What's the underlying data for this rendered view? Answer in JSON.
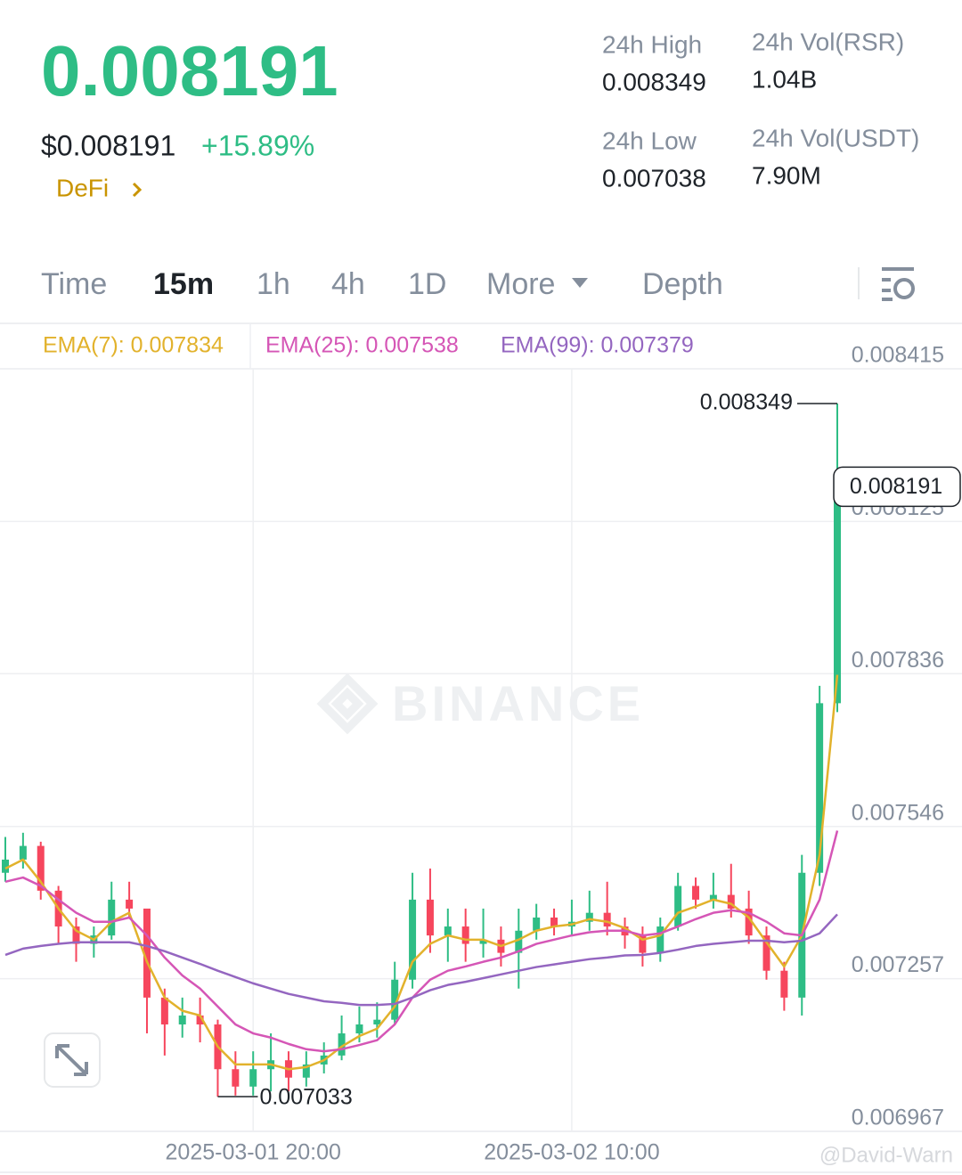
{
  "header": {
    "price": "0.008191",
    "usd_price": "$0.008191",
    "change": "+15.89%",
    "tag": "DeFi",
    "stats": [
      {
        "label": "24h High",
        "value": "0.008349"
      },
      {
        "label": "24h Vol(RSR)",
        "value": "1.04B"
      },
      {
        "label": "24h Low",
        "value": "0.007038"
      },
      {
        "label": "24h Vol(USDT)",
        "value": "7.90M"
      }
    ]
  },
  "tabs": {
    "items": [
      "Time",
      "15m",
      "1h",
      "4h",
      "1D",
      "More",
      "Depth"
    ],
    "active": 1
  },
  "watermarks": [
    "BINANCE",
    "@David-Warn"
  ],
  "chart_data": {
    "type": "candlestick",
    "up_color": "#2ebd85",
    "down_color": "#f6465d",
    "grid": true,
    "ylim": [
      0.006967,
      0.008415
    ],
    "yticks": [
      0.006967,
      0.007257,
      0.007546,
      0.007836,
      0.008125,
      0.008415
    ],
    "xticks": [
      {
        "value": 14,
        "label": "2025-03-01 20:00"
      },
      {
        "value": 32,
        "label": "2025-03-02 10:00"
      }
    ],
    "candles": [
      {
        "open": 0.007458,
        "high": 0.007526,
        "low": 0.007441,
        "close": 0.007483
      },
      {
        "open": 0.007483,
        "high": 0.007534,
        "low": 0.007466,
        "close": 0.007509
      },
      {
        "open": 0.007509,
        "high": 0.007517,
        "low": 0.007407,
        "close": 0.007424
      },
      {
        "open": 0.007424,
        "high": 0.007433,
        "low": 0.007323,
        "close": 0.007356
      },
      {
        "open": 0.007356,
        "high": 0.007373,
        "low": 0.007289,
        "close": 0.007323
      },
      {
        "open": 0.007323,
        "high": 0.007356,
        "low": 0.007297,
        "close": 0.007339
      },
      {
        "open": 0.007339,
        "high": 0.007441,
        "low": 0.007331,
        "close": 0.007407
      },
      {
        "open": 0.007407,
        "high": 0.007441,
        "low": 0.007373,
        "close": 0.00739
      },
      {
        "open": 0.00739,
        "high": 0.00739,
        "low": 0.007153,
        "close": 0.007221
      },
      {
        "open": 0.007221,
        "high": 0.007238,
        "low": 0.007111,
        "close": 0.00717
      },
      {
        "open": 0.00717,
        "high": 0.007221,
        "low": 0.007145,
        "close": 0.007187
      },
      {
        "open": 0.007187,
        "high": 0.007221,
        "low": 0.007136,
        "close": 0.00717
      },
      {
        "open": 0.00717,
        "high": 0.007179,
        "low": 0.007033,
        "close": 0.007085
      },
      {
        "open": 0.007085,
        "high": 0.007119,
        "low": 0.007035,
        "close": 0.007052
      },
      {
        "open": 0.007052,
        "high": 0.007119,
        "low": 0.007035,
        "close": 0.007085
      },
      {
        "open": 0.007085,
        "high": 0.007153,
        "low": 0.007043,
        "close": 0.007102
      },
      {
        "open": 0.007102,
        "high": 0.007119,
        "low": 0.007043,
        "close": 0.007069
      },
      {
        "open": 0.007069,
        "high": 0.007119,
        "low": 0.007052,
        "close": 0.007094
      },
      {
        "open": 0.007094,
        "high": 0.007136,
        "low": 0.007077,
        "close": 0.007111
      },
      {
        "open": 0.007111,
        "high": 0.007187,
        "low": 0.007102,
        "close": 0.007153
      },
      {
        "open": 0.007153,
        "high": 0.007204,
        "low": 0.007136,
        "close": 0.00717
      },
      {
        "open": 0.00717,
        "high": 0.007212,
        "low": 0.007145,
        "close": 0.007179
      },
      {
        "open": 0.007179,
        "high": 0.007289,
        "low": 0.00717,
        "close": 0.007255
      },
      {
        "open": 0.007255,
        "high": 0.007458,
        "low": 0.007238,
        "close": 0.007407
      },
      {
        "open": 0.007407,
        "high": 0.007466,
        "low": 0.007306,
        "close": 0.007339
      },
      {
        "open": 0.007339,
        "high": 0.00739,
        "low": 0.007289,
        "close": 0.007356
      },
      {
        "open": 0.007356,
        "high": 0.00739,
        "low": 0.007289,
        "close": 0.007323
      },
      {
        "open": 0.007323,
        "high": 0.00739,
        "low": 0.007297,
        "close": 0.007331
      },
      {
        "open": 0.007331,
        "high": 0.007356,
        "low": 0.00728,
        "close": 0.007306
      },
      {
        "open": 0.007306,
        "high": 0.00739,
        "low": 0.007238,
        "close": 0.007348
      },
      {
        "open": 0.007348,
        "high": 0.007399,
        "low": 0.007331,
        "close": 0.007373
      },
      {
        "open": 0.007373,
        "high": 0.00739,
        "low": 0.007339,
        "close": 0.007356
      },
      {
        "open": 0.007356,
        "high": 0.007407,
        "low": 0.007339,
        "close": 0.007365
      },
      {
        "open": 0.007365,
        "high": 0.007424,
        "low": 0.007348,
        "close": 0.007382
      },
      {
        "open": 0.007382,
        "high": 0.007441,
        "low": 0.007339,
        "close": 0.007356
      },
      {
        "open": 0.007356,
        "high": 0.007373,
        "low": 0.007314,
        "close": 0.007339
      },
      {
        "open": 0.007339,
        "high": 0.007356,
        "low": 0.00728,
        "close": 0.007306
      },
      {
        "open": 0.007306,
        "high": 0.007373,
        "low": 0.007289,
        "close": 0.007356
      },
      {
        "open": 0.007356,
        "high": 0.007458,
        "low": 0.007348,
        "close": 0.007433
      },
      {
        "open": 0.007433,
        "high": 0.007449,
        "low": 0.00739,
        "close": 0.007407
      },
      {
        "open": 0.007407,
        "high": 0.007458,
        "low": 0.00739,
        "close": 0.007416
      },
      {
        "open": 0.007416,
        "high": 0.007475,
        "low": 0.007373,
        "close": 0.00739
      },
      {
        "open": 0.00739,
        "high": 0.007424,
        "low": 0.007323,
        "close": 0.007339
      },
      {
        "open": 0.007339,
        "high": 0.007356,
        "low": 0.007255,
        "close": 0.007272
      },
      {
        "open": 0.007272,
        "high": 0.007289,
        "low": 0.007196,
        "close": 0.007221
      },
      {
        "open": 0.007221,
        "high": 0.007492,
        "low": 0.007187,
        "close": 0.007458
      },
      {
        "open": 0.007458,
        "high": 0.007813,
        "low": 0.007433,
        "close": 0.00778
      },
      {
        "open": 0.00778,
        "high": 0.008349,
        "low": 0.007763,
        "close": 0.008191
      }
    ],
    "series": [
      {
        "name": "EMA(7)",
        "legend_label": "EMA(7): 0.007834",
        "color": "#e2b22c",
        "values": [
          0.007466,
          0.007483,
          0.007441,
          0.00739,
          0.007348,
          0.007331,
          0.007365,
          0.007382,
          0.007289,
          0.007221,
          0.007196,
          0.007187,
          0.007128,
          0.007094,
          0.007094,
          0.007094,
          0.007085,
          0.007089,
          0.007102,
          0.007128,
          0.007148,
          0.007162,
          0.007204,
          0.007289,
          0.007323,
          0.007339,
          0.007331,
          0.007331,
          0.007319,
          0.007331,
          0.007348,
          0.007356,
          0.00736,
          0.00737,
          0.007365,
          0.007353,
          0.007331,
          0.007339,
          0.007382,
          0.007394,
          0.007407,
          0.007399,
          0.007373,
          0.007326,
          0.00728,
          0.007339,
          0.007492,
          0.007834
        ]
      },
      {
        "name": "EMA(25)",
        "legend_label": "EMA(25): 0.007538",
        "color": "#d556b6",
        "values": [
          0.007441,
          0.007449,
          0.007433,
          0.007407,
          0.007382,
          0.007365,
          0.007365,
          0.007373,
          0.007339,
          0.007297,
          0.007263,
          0.007238,
          0.007204,
          0.00717,
          0.007153,
          0.007145,
          0.007133,
          0.007123,
          0.007119,
          0.007123,
          0.007131,
          0.00714,
          0.00717,
          0.007221,
          0.007255,
          0.007272,
          0.00728,
          0.007289,
          0.007297,
          0.007309,
          0.007323,
          0.007331,
          0.007339,
          0.007345,
          0.007348,
          0.007348,
          0.007339,
          0.007343,
          0.007356,
          0.00737,
          0.007382,
          0.007387,
          0.007382,
          0.007365,
          0.007343,
          0.007339,
          0.007407,
          0.007538
        ]
      },
      {
        "name": "EMA(99)",
        "legend_label": "EMA(99): 0.007379",
        "color": "#9466c0",
        "values": [
          0.007302,
          0.007314,
          0.007319,
          0.007323,
          0.007326,
          0.007326,
          0.007326,
          0.007326,
          0.007319,
          0.007309,
          0.007297,
          0.007285,
          0.007272,
          0.00726,
          0.007248,
          0.007238,
          0.007228,
          0.007221,
          0.007214,
          0.007211,
          0.007207,
          0.007207,
          0.007209,
          0.007221,
          0.007235,
          0.007245,
          0.007251,
          0.007258,
          0.007265,
          0.007272,
          0.007279,
          0.007284,
          0.007289,
          0.007294,
          0.007297,
          0.007301,
          0.007302,
          0.007306,
          0.007312,
          0.007319,
          0.007323,
          0.007326,
          0.007329,
          0.007329,
          0.007326,
          0.007329,
          0.007343,
          0.007379
        ]
      }
    ]
  }
}
